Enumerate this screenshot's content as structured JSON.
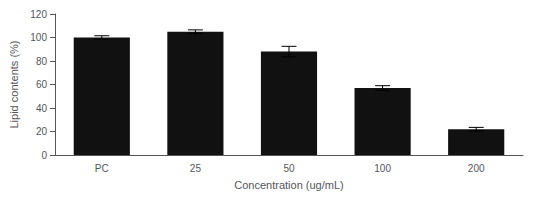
{
  "chart_data": {
    "type": "bar",
    "categories": [
      "PC",
      "25",
      "50",
      "100",
      "200"
    ],
    "values": [
      100,
      105,
      88,
      57,
      22
    ],
    "errors": [
      1.5,
      1.5,
      4.5,
      2.0,
      1.5
    ],
    "color": "#111111",
    "xlabel": "Concentration (ug/mL)",
    "ylabel": "Lipid contents (%)",
    "ylim": [
      0,
      120
    ],
    "yticks": [
      0,
      20,
      40,
      60,
      80,
      100,
      120
    ],
    "grid": false
  }
}
